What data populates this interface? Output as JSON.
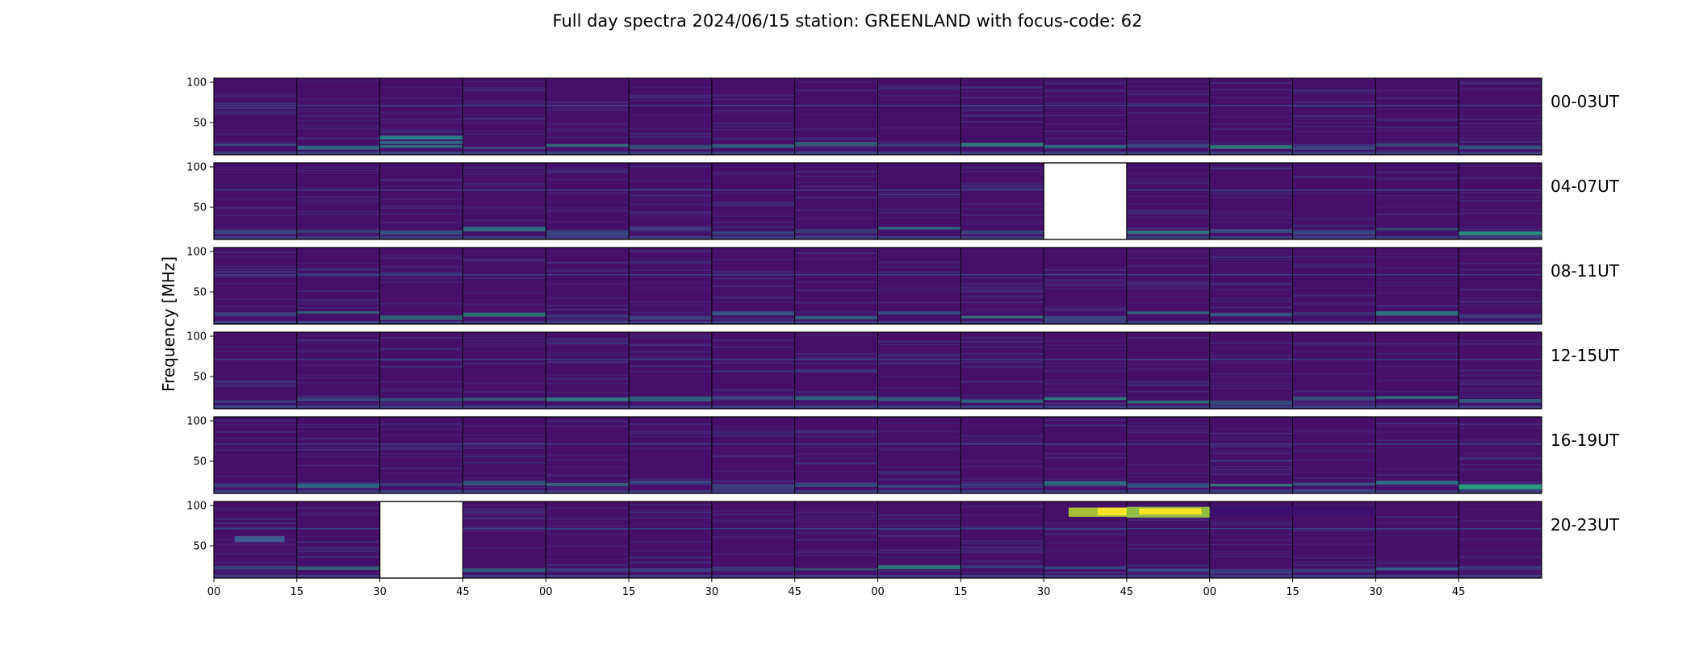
{
  "chart_data": {
    "type": "heatmap",
    "title": "Full day spectra 2024/06/15 station: GREENLAND with focus-code: 62",
    "ylabel": "Frequency [MHz]",
    "yticks": [
      "100",
      "50"
    ],
    "ylim": [
      10,
      105
    ],
    "xticks": [
      "00",
      "15",
      "30",
      "45",
      "00",
      "15",
      "30",
      "45",
      "00",
      "15",
      "30",
      "45",
      "00",
      "15",
      "30",
      "45"
    ],
    "row_labels": [
      "00-03UT",
      "04-07UT",
      "08-11UT",
      "12-15UT",
      "16-19UT",
      "20-23UT"
    ],
    "panels_per_row": 16,
    "colormap": "viridis",
    "missing_panels": [
      {
        "row": 1,
        "col": 10
      },
      {
        "row": 5,
        "col": 2
      }
    ],
    "colors": {
      "background_low": "#46106a",
      "mid": "#2a788e",
      "high": "#fde725",
      "frame": "#000000"
    }
  }
}
